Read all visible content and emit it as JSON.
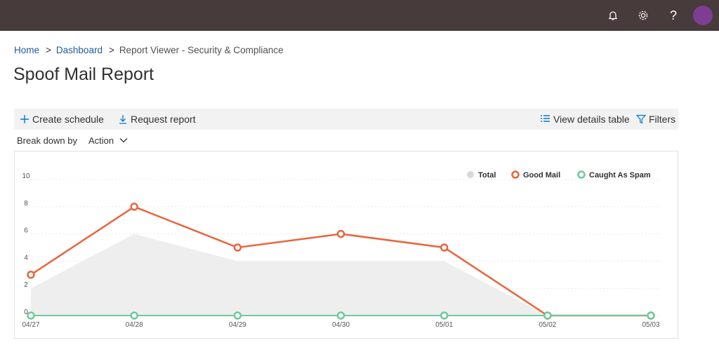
{
  "topbar": {
    "icons": [
      "bell-icon",
      "gear-icon",
      "help-icon",
      "avatar"
    ],
    "help_glyph": "?",
    "avatar_color": "#7e3d94"
  },
  "breadcrumb": {
    "home": "Home",
    "dashboard": "Dashboard",
    "current": "Report Viewer - Security & Compliance",
    "separator": ">"
  },
  "page": {
    "title": "Spoof Mail Report"
  },
  "toolbar": {
    "create_schedule": "Create schedule",
    "request_report": "Request report",
    "view_details_table": "View details table",
    "filters": "Filters"
  },
  "breakdown": {
    "label": "Break down by",
    "selected": "Action"
  },
  "chart_data": {
    "type": "line",
    "x": [
      "04/27",
      "04/28",
      "04/29",
      "04/30",
      "05/01",
      "05/02",
      "05/03"
    ],
    "yticks": [
      "10",
      "8",
      "6",
      "4",
      "2",
      "0"
    ],
    "ylim": [
      0,
      10
    ],
    "series": [
      {
        "name": "Total",
        "color": "#d9d9d9",
        "values": [
          2,
          6,
          4,
          4,
          4,
          0,
          0
        ]
      },
      {
        "name": "Good Mail",
        "color": "#e8653d",
        "values": [
          3,
          8,
          5,
          6,
          5,
          0,
          0
        ]
      },
      {
        "name": "Caught As Spam",
        "color": "#6fc99c",
        "values": [
          0,
          0,
          0,
          0,
          0,
          0,
          0
        ]
      }
    ],
    "legend_position": "top-right",
    "grid": true
  }
}
